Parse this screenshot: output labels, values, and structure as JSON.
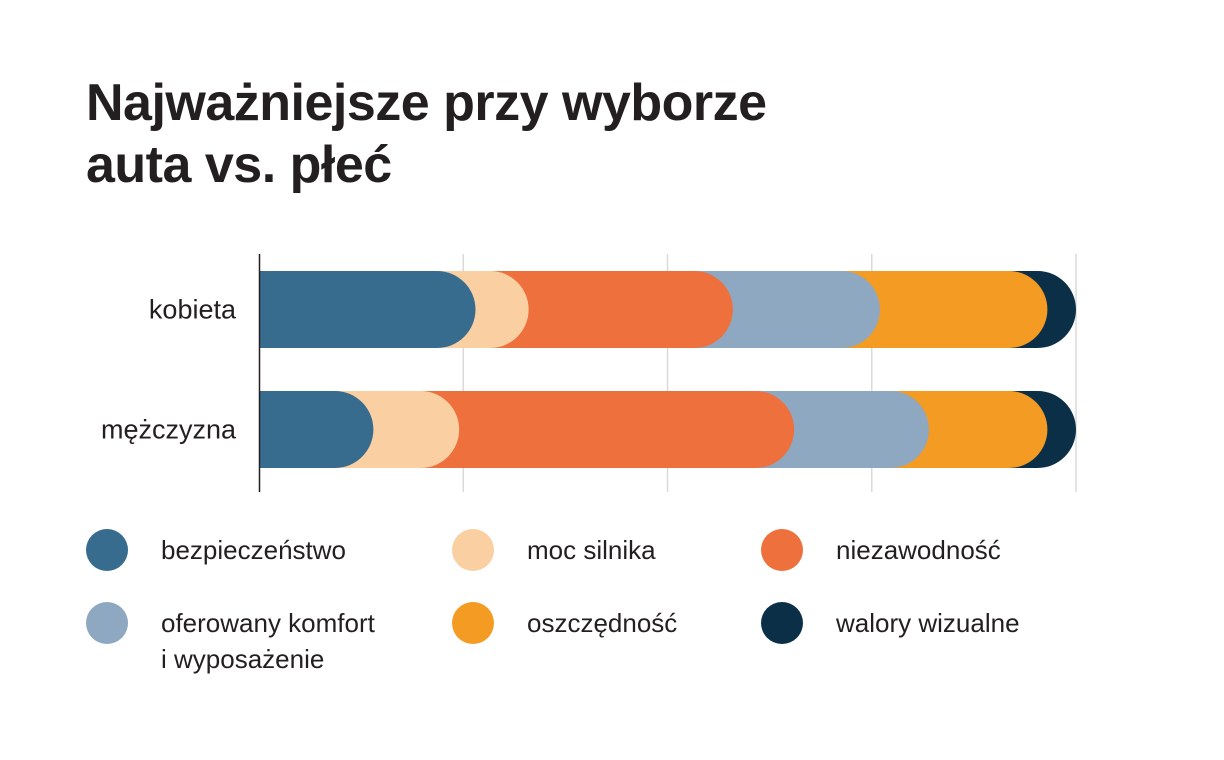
{
  "chart_data": {
    "type": "bar",
    "orientation": "horizontal",
    "stacked": true,
    "title": [
      "Najważniejsze przy wyborze",
      "auta vs. płeć"
    ],
    "categories": [
      "kobieta",
      "mężczyzna"
    ],
    "xlim": [
      0,
      100
    ],
    "grid": true,
    "legend_position": "bottom",
    "series": [
      {
        "name": [
          "bezpieczeństwo"
        ],
        "color": "#386c8e",
        "values": [
          26.5,
          14
        ]
      },
      {
        "name": [
          "moc silnika"
        ],
        "color": "#fad0a3",
        "values": [
          6.5,
          10.5
        ]
      },
      {
        "name": [
          "niezawodność"
        ],
        "color": "#ee703c",
        "values": [
          25,
          41
        ]
      },
      {
        "name": [
          "oferowany komfort",
          "i wyposażenie"
        ],
        "color": "#8ea8c2",
        "values": [
          18,
          16.5
        ]
      },
      {
        "name": [
          "oszczędność"
        ],
        "color": "#f39b22",
        "values": [
          20.5,
          14.5
        ]
      },
      {
        "name": [
          "walory wizualne"
        ],
        "color": "#0c2f48",
        "values": [
          3.5,
          3.5
        ]
      }
    ]
  }
}
